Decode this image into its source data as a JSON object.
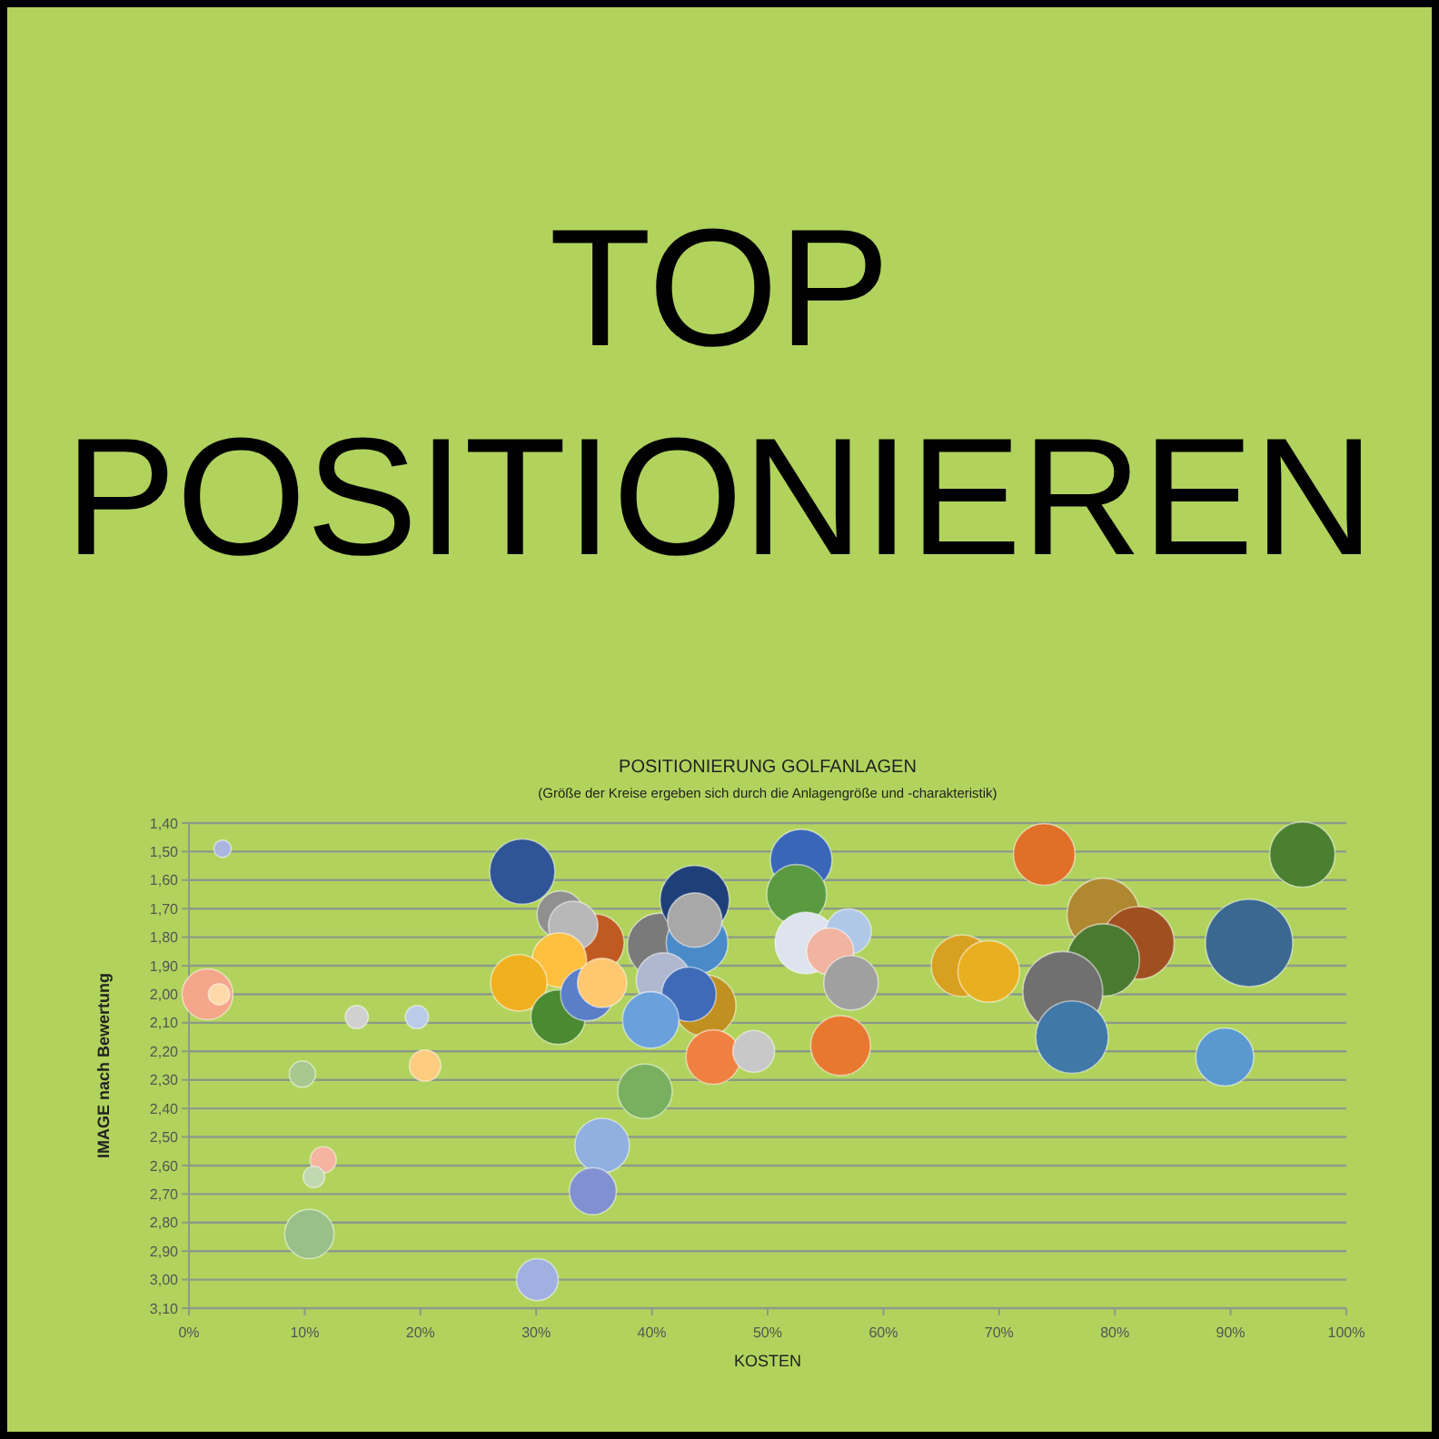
{
  "chart_data": {
    "type": "bubble",
    "title": "TOP POSITIONIEREN",
    "subtitle": "POSITIONIERUNG GOLFANLAGEN",
    "annotations": [
      "(Größe der Kreise ergeben sich durch die Anlagengröße und -charakteristik)"
    ],
    "xlabel": "KOSTEN",
    "ylabel": "IMAGE nach Bewertung",
    "xlim": [
      0,
      100
    ],
    "xticks": [
      {
        "value": 0,
        "label": "0%"
      },
      {
        "value": 10,
        "label": "10%"
      },
      {
        "value": 20,
        "label": "20%"
      },
      {
        "value": 30,
        "label": "30%"
      },
      {
        "value": 40,
        "label": "40%"
      },
      {
        "value": 50,
        "label": "50%"
      },
      {
        "value": 60,
        "label": "60%"
      },
      {
        "value": 70,
        "label": "70%"
      },
      {
        "value": 80,
        "label": "80%"
      },
      {
        "value": 90,
        "label": "90%"
      },
      {
        "value": 100,
        "label": "100%"
      }
    ],
    "ylim": [
      3.1,
      1.4
    ],
    "yticks": [
      {
        "value": 1.4,
        "label": "1,40"
      },
      {
        "value": 1.5,
        "label": "1,50"
      },
      {
        "value": 1.6,
        "label": "1,60"
      },
      {
        "value": 1.7,
        "label": "1,70"
      },
      {
        "value": 1.8,
        "label": "1,80"
      },
      {
        "value": 1.9,
        "label": "1,90"
      },
      {
        "value": 2.0,
        "label": "2,00"
      },
      {
        "value": 2.1,
        "label": "2,10"
      },
      {
        "value": 2.2,
        "label": "2,20"
      },
      {
        "value": 2.3,
        "label": "2,30"
      },
      {
        "value": 2.4,
        "label": "2,40"
      },
      {
        "value": 2.5,
        "label": "2,50"
      },
      {
        "value": 2.6,
        "label": "2,60"
      },
      {
        "value": 2.7,
        "label": "2,70"
      },
      {
        "value": 2.8,
        "label": "2,80"
      },
      {
        "value": 2.9,
        "label": "2,90"
      },
      {
        "value": 3.0,
        "label": "3,00"
      },
      {
        "value": 3.1,
        "label": "3,10"
      }
    ],
    "grid": "y",
    "series": [
      {
        "x": [
          2.9,
          1.6,
          2.6,
          14.5,
          19.7,
          20.4,
          9.8,
          11.6,
          10.8,
          10.4,
          30.1,
          28.8,
          32.1,
          35.1,
          33.2,
          32.0,
          28.5,
          31.9,
          34.4,
          35.7,
          40.7,
          43.7,
          43.9,
          43.7,
          41.0,
          44.6,
          43.2,
          39.9,
          45.3,
          48.8,
          39.4,
          35.7,
          34.9,
          52.9,
          52.5,
          53.3,
          57.0,
          55.4,
          57.2,
          56.3,
          73.9,
          96.2,
          79.0,
          82.0,
          79.0,
          66.8,
          69.1,
          75.5,
          76.3,
          91.6,
          89.5
        ],
        "values": [
          1.49,
          2.0,
          2.0,
          2.08,
          2.08,
          2.25,
          2.28,
          2.58,
          2.64,
          2.84,
          3.0,
          1.57,
          1.72,
          1.82,
          1.76,
          1.88,
          1.96,
          2.08,
          2.0,
          1.96,
          1.83,
          1.67,
          1.82,
          1.74,
          1.95,
          2.04,
          2.0,
          2.09,
          2.22,
          2.2,
          2.34,
          2.53,
          2.69,
          1.53,
          1.65,
          1.82,
          1.78,
          1.85,
          1.96,
          2.18,
          1.51,
          1.51,
          1.72,
          1.82,
          1.88,
          1.9,
          1.92,
          1.99,
          2.15,
          1.82,
          2.22
        ],
        "sizes": [
          0.04,
          0.34,
          0.06,
          0.07,
          0.07,
          0.13,
          0.09,
          0.09,
          0.06,
          0.32,
          0.23,
          0.56,
          0.29,
          0.44,
          0.32,
          0.39,
          0.42,
          0.39,
          0.37,
          0.32,
          0.56,
          0.63,
          0.5,
          0.39,
          0.39,
          0.5,
          0.39,
          0.42,
          0.39,
          0.23,
          0.39,
          0.39,
          0.29,
          0.5,
          0.47,
          0.5,
          0.27,
          0.29,
          0.39,
          0.47,
          0.5,
          0.56,
          0.69,
          0.69,
          0.69,
          0.5,
          0.5,
          0.84,
          0.69,
          1,
          0.44
        ],
        "colors": [
          "#aab6e0",
          "#f4a68a",
          "#ffd9a8",
          "#d0d0d0",
          "#b8cbe8",
          "#ffcc80",
          "#a8c890",
          "#f4b4a0",
          "#c0d8b0",
          "#98c088",
          "#a0b0e0",
          "#2f5597",
          "#909090",
          "#c05a20",
          "#b8b8b8",
          "#ffc040",
          "#f0b020",
          "#4a8a30",
          "#5a7ec8",
          "#ffc870",
          "#7a7a7a",
          "#1f3f78",
          "#4a8ac8",
          "#a8a8a8",
          "#b0b8d0",
          "#c09020",
          "#3f6ab8",
          "#6aa0dc",
          "#f08040",
          "#c8c8c8",
          "#78b060",
          "#90b0e0",
          "#8090d0",
          "#3a66b8",
          "#5a9a40",
          "#dde4ee",
          "#b0c8e8",
          "#f0b4a0",
          "#a0a0a0",
          "#e87830",
          "#e07028",
          "#4a8030",
          "#b08830",
          "#a05020",
          "#4a7a30",
          "#d8a020",
          "#e8b020",
          "#707070",
          "#4078a8",
          "#3a6890",
          "#5a98d0"
        ]
      }
    ]
  }
}
